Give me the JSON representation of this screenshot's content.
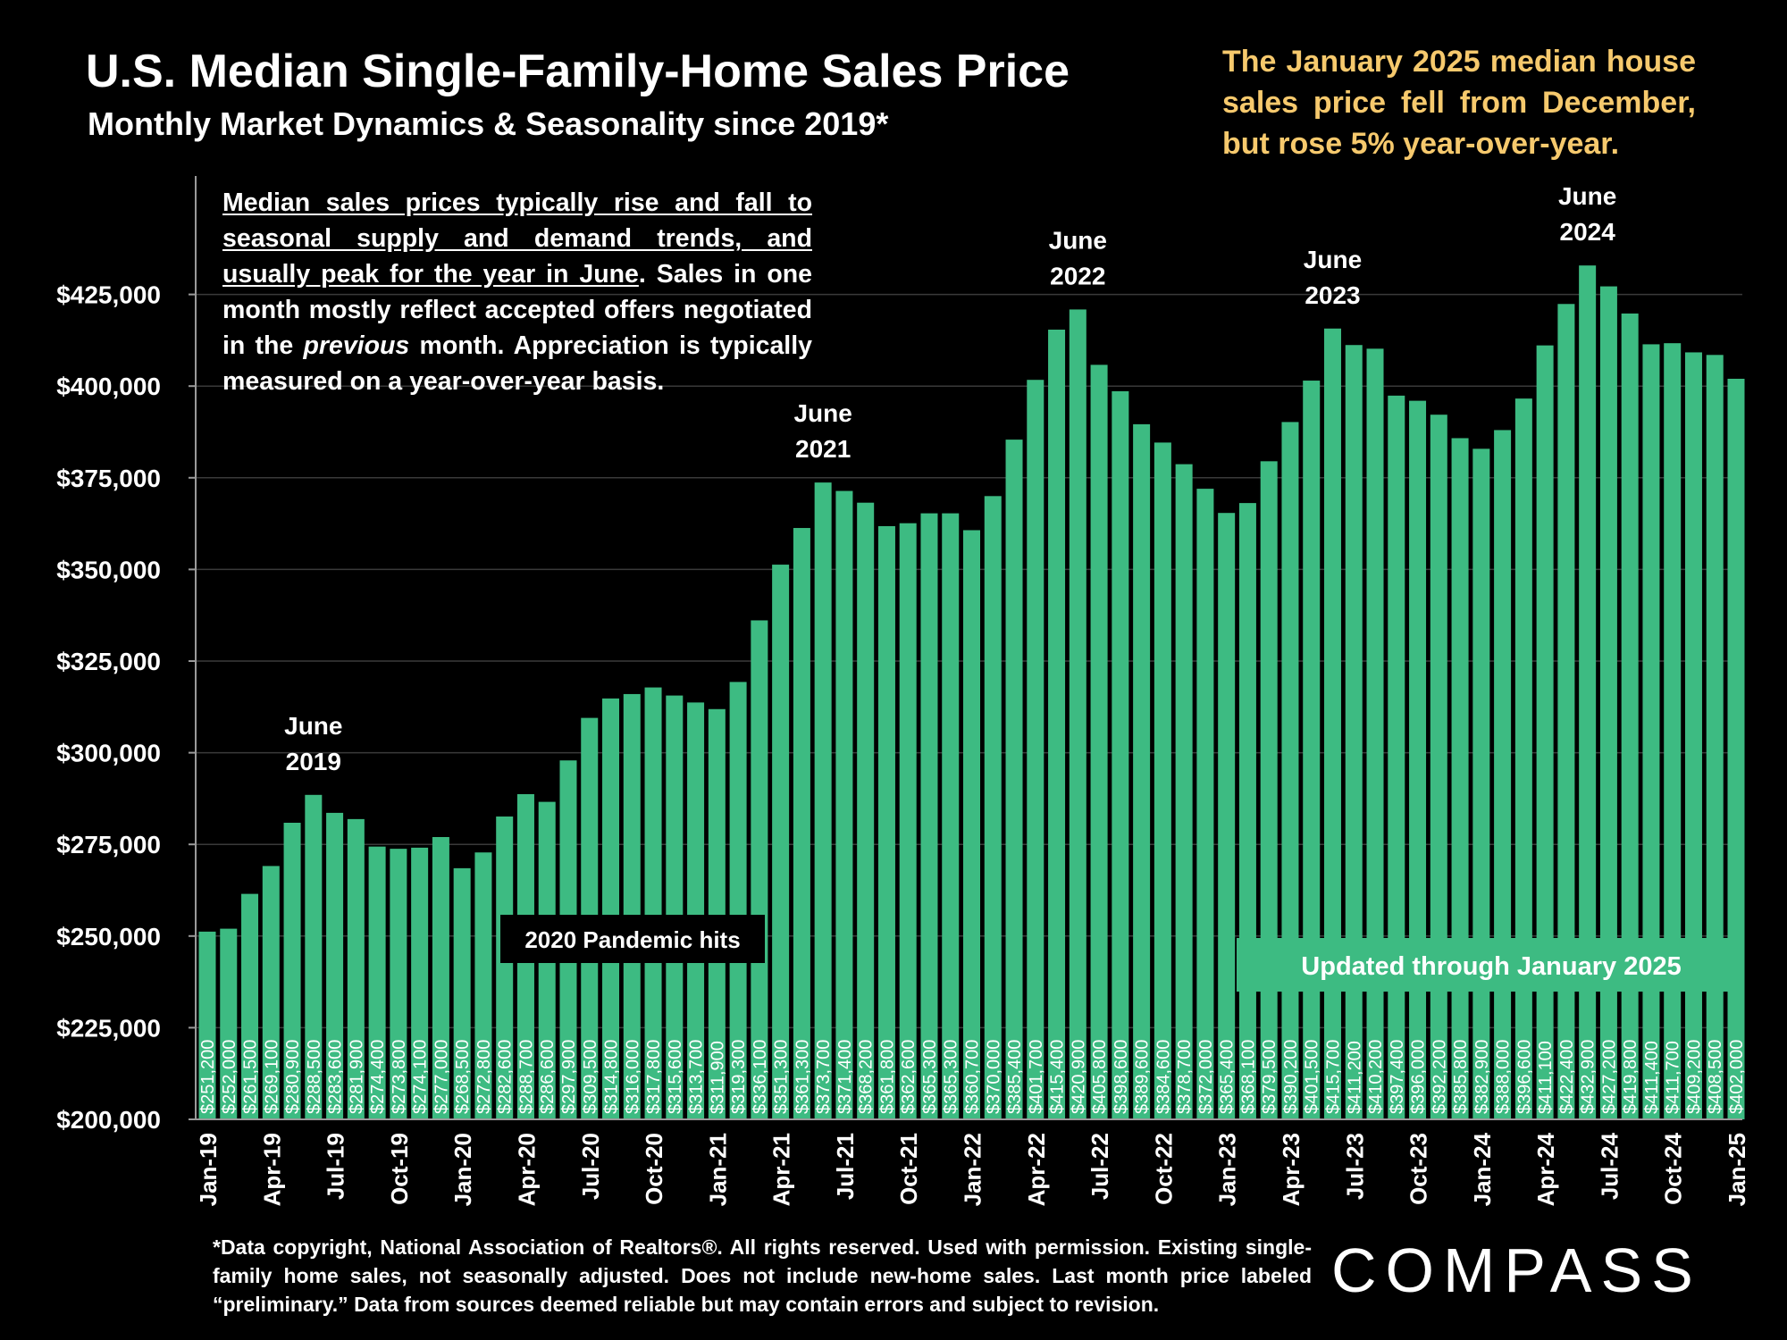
{
  "header": {
    "title": "U.S. Median Single-Family-Home Sales Price",
    "subtitle": "Monthly Market Dynamics & Seasonality since 2019*",
    "callout": "The January 2025 median house sales price fell from December, but rose 5% year-over-year."
  },
  "note": {
    "underlined": "Median sales prices typically rise and fall to seasonal supply and demand trends, and usually peak for the year in June",
    "part1": ". Sales in one month mostly reflect accepted offers negotiated in the ",
    "italic": "previous",
    "part2": " month. Appreciation is typically measured on a year-over-year basis."
  },
  "footnote": "*Data copyright, National Association of Realtors®. All rights reserved. Used with permission. Existing single-family home sales, not seasonally adjusted. Does not include new-home sales. Last month price labeled “preliminary.” Data from sources deemed reliable but may contain errors and subject to revision.",
  "logo": "COMPASS",
  "colors": {
    "bar": "#3dbb82",
    "callout": "#f6c96d",
    "background": "#000000"
  },
  "chart_data": {
    "type": "bar",
    "ylim": [
      200000,
      450000
    ],
    "yticks": [
      200000,
      225000,
      250000,
      275000,
      300000,
      325000,
      350000,
      375000,
      400000,
      425000
    ],
    "ytick_labels": [
      "$200,000",
      "$225,000",
      "$250,000",
      "$275,000",
      "$300,000",
      "$325,000",
      "$350,000",
      "$375,000",
      "$400,000",
      "$425,000"
    ],
    "grid": "horizontal",
    "categories": [
      "Jan-19",
      "Feb-19",
      "Mar-19",
      "Apr-19",
      "May-19",
      "Jun-19",
      "Jul-19",
      "Aug-19",
      "Sep-19",
      "Oct-19",
      "Nov-19",
      "Dec-19",
      "Jan-20",
      "Feb-20",
      "Mar-20",
      "Apr-20",
      "May-20",
      "Jun-20",
      "Jul-20",
      "Aug-20",
      "Sep-20",
      "Oct-20",
      "Nov-20",
      "Dec-20",
      "Jan-21",
      "Feb-21",
      "Mar-21",
      "Apr-21",
      "May-21",
      "Jun-21",
      "Jul-21",
      "Aug-21",
      "Sep-21",
      "Oct-21",
      "Nov-21",
      "Dec-21",
      "Jan-22",
      "Feb-22",
      "Mar-22",
      "Apr-22",
      "May-22",
      "Jun-22",
      "Jul-22",
      "Aug-22",
      "Sep-22",
      "Oct-22",
      "Nov-22",
      "Dec-22",
      "Jan-23",
      "Feb-23",
      "Mar-23",
      "Apr-23",
      "May-23",
      "Jun-23",
      "Jul-23",
      "Aug-23",
      "Sep-23",
      "Oct-23",
      "Nov-23",
      "Dec-23",
      "Jan-24",
      "Feb-24",
      "Mar-24",
      "Apr-24",
      "May-24",
      "Jun-24",
      "Jul-24",
      "Aug-24",
      "Sep-24",
      "Oct-24",
      "Nov-24",
      "Dec-24",
      "Jan-25"
    ],
    "xtick_labels": [
      {
        "index": 0,
        "label": "Jan-19"
      },
      {
        "index": 3,
        "label": "Apr-19"
      },
      {
        "index": 6,
        "label": "Jul-19"
      },
      {
        "index": 9,
        "label": "Oct-19"
      },
      {
        "index": 12,
        "label": "Jan-20"
      },
      {
        "index": 15,
        "label": "Apr-20"
      },
      {
        "index": 18,
        "label": "Jul-20"
      },
      {
        "index": 21,
        "label": "Oct-20"
      },
      {
        "index": 24,
        "label": "Jan-21"
      },
      {
        "index": 27,
        "label": "Apr-21"
      },
      {
        "index": 30,
        "label": "Jul-21"
      },
      {
        "index": 33,
        "label": "Oct-21"
      },
      {
        "index": 36,
        "label": "Jan-22"
      },
      {
        "index": 39,
        "label": "Apr-22"
      },
      {
        "index": 42,
        "label": "Jul-22"
      },
      {
        "index": 45,
        "label": "Oct-22"
      },
      {
        "index": 48,
        "label": "Jan-23"
      },
      {
        "index": 51,
        "label": "Apr-23"
      },
      {
        "index": 54,
        "label": "Jul-23"
      },
      {
        "index": 57,
        "label": "Oct-23"
      },
      {
        "index": 60,
        "label": "Jan-24"
      },
      {
        "index": 63,
        "label": "Apr-24"
      },
      {
        "index": 66,
        "label": "Jul-24"
      },
      {
        "index": 69,
        "label": "Oct-24"
      },
      {
        "index": 72,
        "label": "Jan-25"
      }
    ],
    "values": [
      251200,
      252000,
      261500,
      269100,
      280900,
      288500,
      283600,
      281900,
      274400,
      273800,
      274100,
      277000,
      268500,
      272800,
      282600,
      288700,
      286600,
      297900,
      309500,
      314800,
      316000,
      317800,
      315600,
      313700,
      311900,
      319300,
      336100,
      351300,
      361300,
      373700,
      371400,
      368200,
      361800,
      362600,
      365300,
      365300,
      360700,
      370000,
      385400,
      401700,
      415400,
      420900,
      405800,
      398600,
      389600,
      384600,
      378700,
      372000,
      365400,
      368100,
      379500,
      390200,
      401500,
      415700,
      411200,
      410200,
      397400,
      396000,
      392200,
      385800,
      382900,
      388000,
      396600,
      411100,
      422400,
      432900,
      427200,
      419800,
      411400,
      411700,
      409200,
      408500,
      402000
    ],
    "value_labels": [
      "$251,200",
      "$252,000",
      "$261,500",
      "$269,100",
      "$280,900",
      "$288,500",
      "$283,600",
      "$281,900",
      "$274,400",
      "$273,800",
      "$274,100",
      "$277,000",
      "$268,500",
      "$272,800",
      "$282,600",
      "$288,700",
      "$286,600",
      "$297,900",
      "$309,500",
      "$314,800",
      "$316,000",
      "$317,800",
      "$315,600",
      "$313,700",
      "$311,900",
      "$319,300",
      "$336,100",
      "$351,300",
      "$361,300",
      "$373,700",
      "$371,400",
      "$368,200",
      "$361,800",
      "$362,600",
      "$365,300",
      "$365,300",
      "$360,700",
      "$370,000",
      "$385,400",
      "$401,700",
      "$415,400",
      "$420,900",
      "$405,800",
      "$398,600",
      "$389,600",
      "$384,600",
      "$378,700",
      "$372,000",
      "$365,400",
      "$368,100",
      "$379,500",
      "$390,200",
      "$401,500",
      "$415,700",
      "$411,200",
      "$410,200",
      "$397,400",
      "$396,000",
      "$392,200",
      "$385,800",
      "$382,900",
      "$388,000",
      "$396,600",
      "$411,100",
      "$422,400",
      "$432,900",
      "$427,200",
      "$419,800",
      "$411,400",
      "$411,700",
      "$409,200",
      "$408,500",
      "$402,000"
    ],
    "annotations": [
      {
        "index": 5,
        "lines": [
          "June",
          "2019"
        ]
      },
      {
        "index": 29,
        "lines": [
          "June",
          "2021"
        ]
      },
      {
        "index": 41,
        "lines": [
          "June",
          "2022"
        ]
      },
      {
        "index": 53,
        "lines": [
          "June",
          "2023"
        ]
      },
      {
        "index": 65,
        "lines": [
          "June",
          "2024"
        ]
      }
    ],
    "pandemic_label": "2020 Pandemic hits",
    "updated_label": "Updated through January 2025"
  }
}
